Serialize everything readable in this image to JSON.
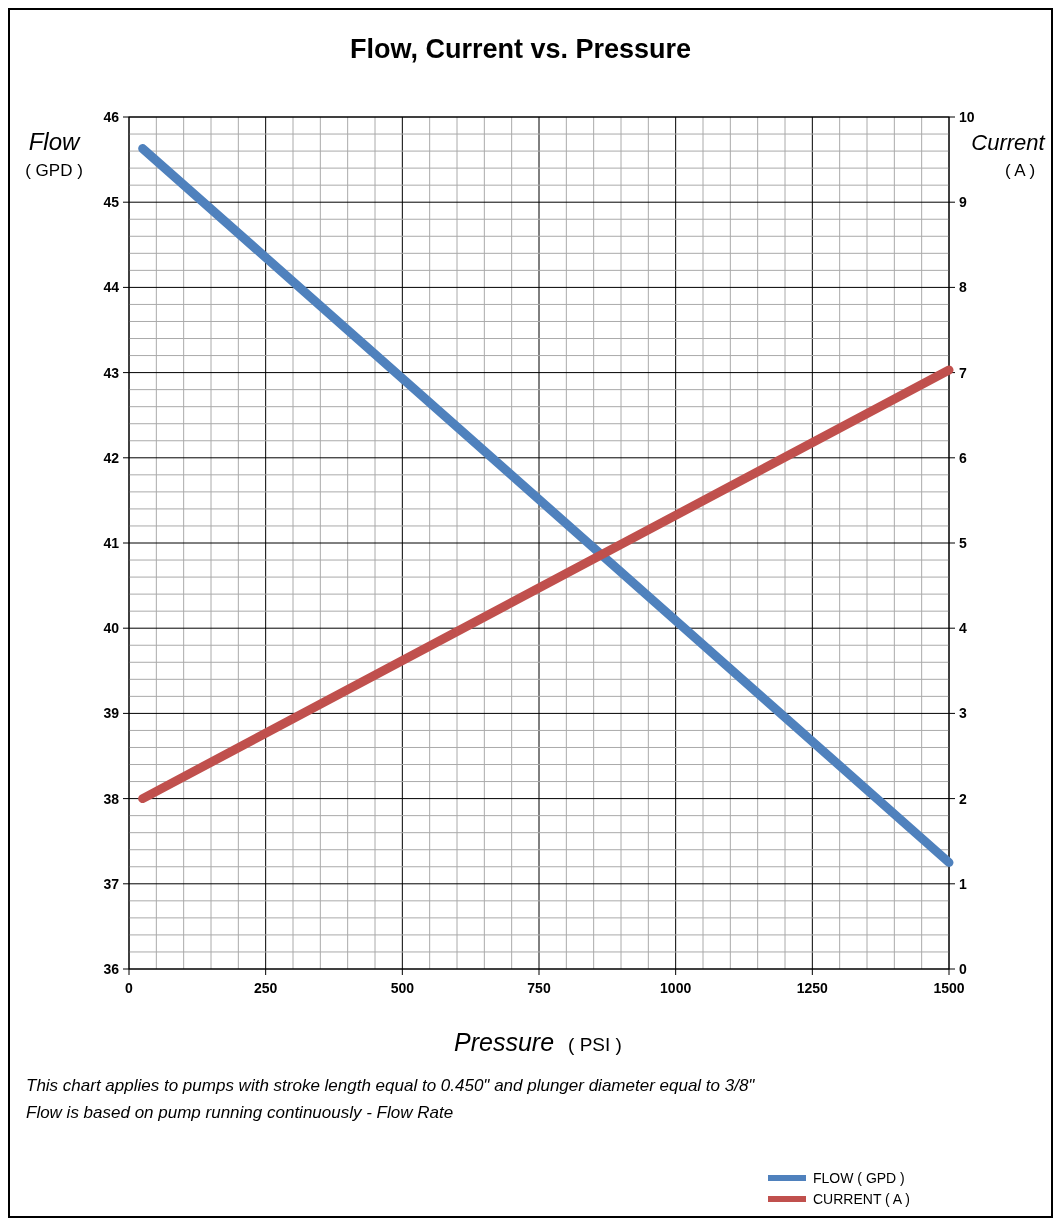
{
  "chart_data": {
    "type": "line",
    "title": "Flow, Current vs. Pressure",
    "xlabel": "Pressure ( PSI )",
    "ylabel": "Flow ( GPD )",
    "y2label": "Current ( A )",
    "x": [
      25,
      1500
    ],
    "series": [
      {
        "name": "FLOW ( GPD )",
        "color": "#4f81bd",
        "values": [
          45.63,
          37.25
        ]
      },
      {
        "name": "CURRENT ( A )",
        "color": "#c0504d",
        "values": [
          2.0,
          7.03
        ],
        "axis": "y2"
      }
    ],
    "xlim": [
      0,
      1500
    ],
    "xticks": [
      0,
      {
        "value": 50,
        "label": null
      },
      {
        "value": 100,
        "label": null
      },
      {
        "value": 150,
        "label": null
      },
      {
        "value": 200,
        "label": null
      },
      250,
      {
        "value": 300,
        "label": null
      },
      {
        "value": 350,
        "label": null
      },
      {
        "value": 400,
        "label": null
      },
      {
        "value": 450,
        "label": null
      },
      500,
      {
        "value": 550,
        "label": null
      },
      {
        "value": 600,
        "label": null
      },
      {
        "value": 650,
        "label": null
      },
      {
        "value": 700,
        "label": null
      },
      750,
      {
        "value": 800,
        "label": null
      },
      {
        "value": 850,
        "label": null
      },
      {
        "value": 900,
        "label": null
      },
      {
        "value": 950,
        "label": null
      },
      1000,
      {
        "value": 1050,
        "label": null
      },
      {
        "value": 1100,
        "label": null
      },
      {
        "value": 1150,
        "label": null
      },
      {
        "value": 1200,
        "label": null
      },
      1250,
      {
        "value": 1300,
        "label": null
      },
      {
        "value": 1350,
        "label": null
      },
      {
        "value": 1400,
        "label": null
      },
      {
        "value": 1450,
        "label": null
      },
      1500
    ],
    "ylim": [
      36,
      46
    ],
    "yticks": [
      36,
      {
        "value": 36.2,
        "label": null
      },
      {
        "value": 36.4,
        "label": null
      },
      {
        "value": 36.6,
        "label": null
      },
      {
        "value": 36.8,
        "label": null
      },
      37,
      {
        "value": 37.2,
        "label": null
      },
      {
        "value": 37.4,
        "label": null
      },
      {
        "value": 37.6,
        "label": null
      },
      {
        "value": 37.8,
        "label": null
      },
      38,
      {
        "value": 38.2,
        "label": null
      },
      {
        "value": 38.4,
        "label": null
      },
      {
        "value": 38.6,
        "label": null
      },
      {
        "value": 38.8,
        "label": null
      },
      39,
      {
        "value": 39.2,
        "label": null
      },
      {
        "value": 39.4,
        "label": null
      },
      {
        "value": 39.6,
        "label": null
      },
      {
        "value": 39.8,
        "label": null
      },
      40,
      {
        "value": 40.2,
        "label": null
      },
      {
        "value": 40.4,
        "label": null
      },
      {
        "value": 40.6,
        "label": null
      },
      {
        "value": 40.8,
        "label": null
      },
      41,
      {
        "value": 41.2,
        "label": null
      },
      {
        "value": 41.4,
        "label": null
      },
      {
        "value": 41.6,
        "label": null
      },
      {
        "value": 41.8,
        "label": null
      },
      42,
      {
        "value": 42.2,
        "label": null
      },
      {
        "value": 42.4,
        "label": null
      },
      {
        "value": 42.6,
        "label": null
      },
      {
        "value": 42.8,
        "label": null
      },
      43,
      {
        "value": 43.2,
        "label": null
      },
      {
        "value": 43.4,
        "label": null
      },
      {
        "value": 43.6,
        "label": null
      },
      {
        "value": 43.8,
        "label": null
      },
      44,
      {
        "value": 44.2,
        "label": null
      },
      {
        "value": 44.4,
        "label": null
      },
      {
        "value": 44.6,
        "label": null
      },
      {
        "value": 44.8,
        "label": null
      },
      45,
      {
        "value": 45.2,
        "label": null
      },
      {
        "value": 45.4,
        "label": null
      },
      {
        "value": 45.6,
        "label": null
      },
      {
        "value": 45.8,
        "label": null
      },
      46
    ],
    "y2lim": [
      0,
      10
    ],
    "y2ticks": [
      0,
      1,
      2,
      3,
      4,
      5,
      6,
      7,
      8,
      9,
      10
    ],
    "grid": true,
    "legend": "bottom right",
    "marker": "none",
    "line_style": "solid",
    "annotations": [
      "This chart applies to pumps with stroke length equal to 0.450\" and plunger diameter equal to 3/8\"",
      "Flow is based on pump running continuously - Flow Rate"
    ]
  }
}
